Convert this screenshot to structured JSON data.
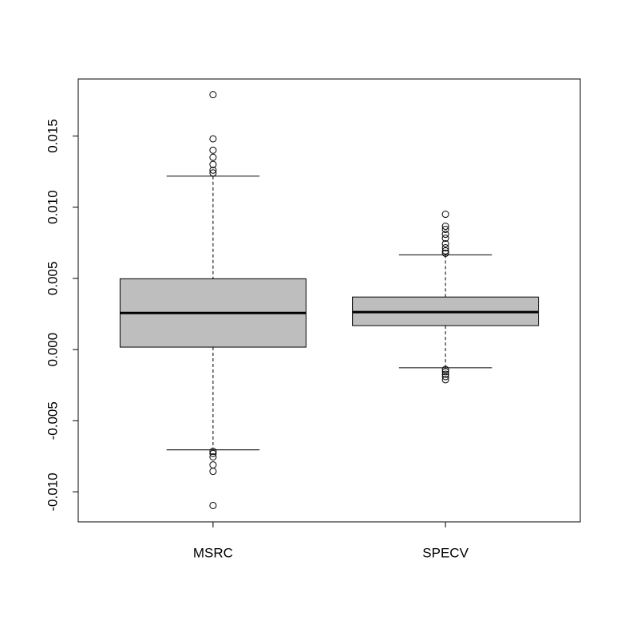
{
  "chart_data": {
    "type": "boxplot",
    "categories": [
      "MSRC",
      "SPECV"
    ],
    "color": "#bebebe",
    "boxes": [
      {
        "whislo": -0.00704,
        "q1": 0.00017,
        "med": 0.00257,
        "q3": 0.00497,
        "whishi": 0.01218,
        "outliers": [
          0.0179,
          0.0148,
          0.014,
          0.0135,
          0.013,
          0.0126,
          0.0124,
          -0.00715,
          -0.0073,
          -0.00754,
          -0.0081,
          -0.00855,
          -0.01095
        ]
      },
      {
        "whislo": -0.00128,
        "q1": 0.00168,
        "med": 0.00263,
        "q3": 0.00369,
        "whishi": 0.00665,
        "outliers": [
          0.0095,
          0.00866,
          0.00844,
          0.0081,
          0.00782,
          0.00743,
          0.00715,
          0.00693,
          0.00676,
          -0.0014,
          -0.00156,
          -0.00173,
          -0.0019,
          -0.00212
        ]
      }
    ],
    "ylim": [
      -0.0121,
      0.019
    ],
    "yticks": [
      0.015,
      {
        "value": 0.01,
        "label": "0.010"
      },
      0.005,
      {
        "value": 0,
        "label": "0.000"
      },
      -0.005,
      {
        "value": -0.01,
        "label": "-0.010"
      }
    ]
  }
}
